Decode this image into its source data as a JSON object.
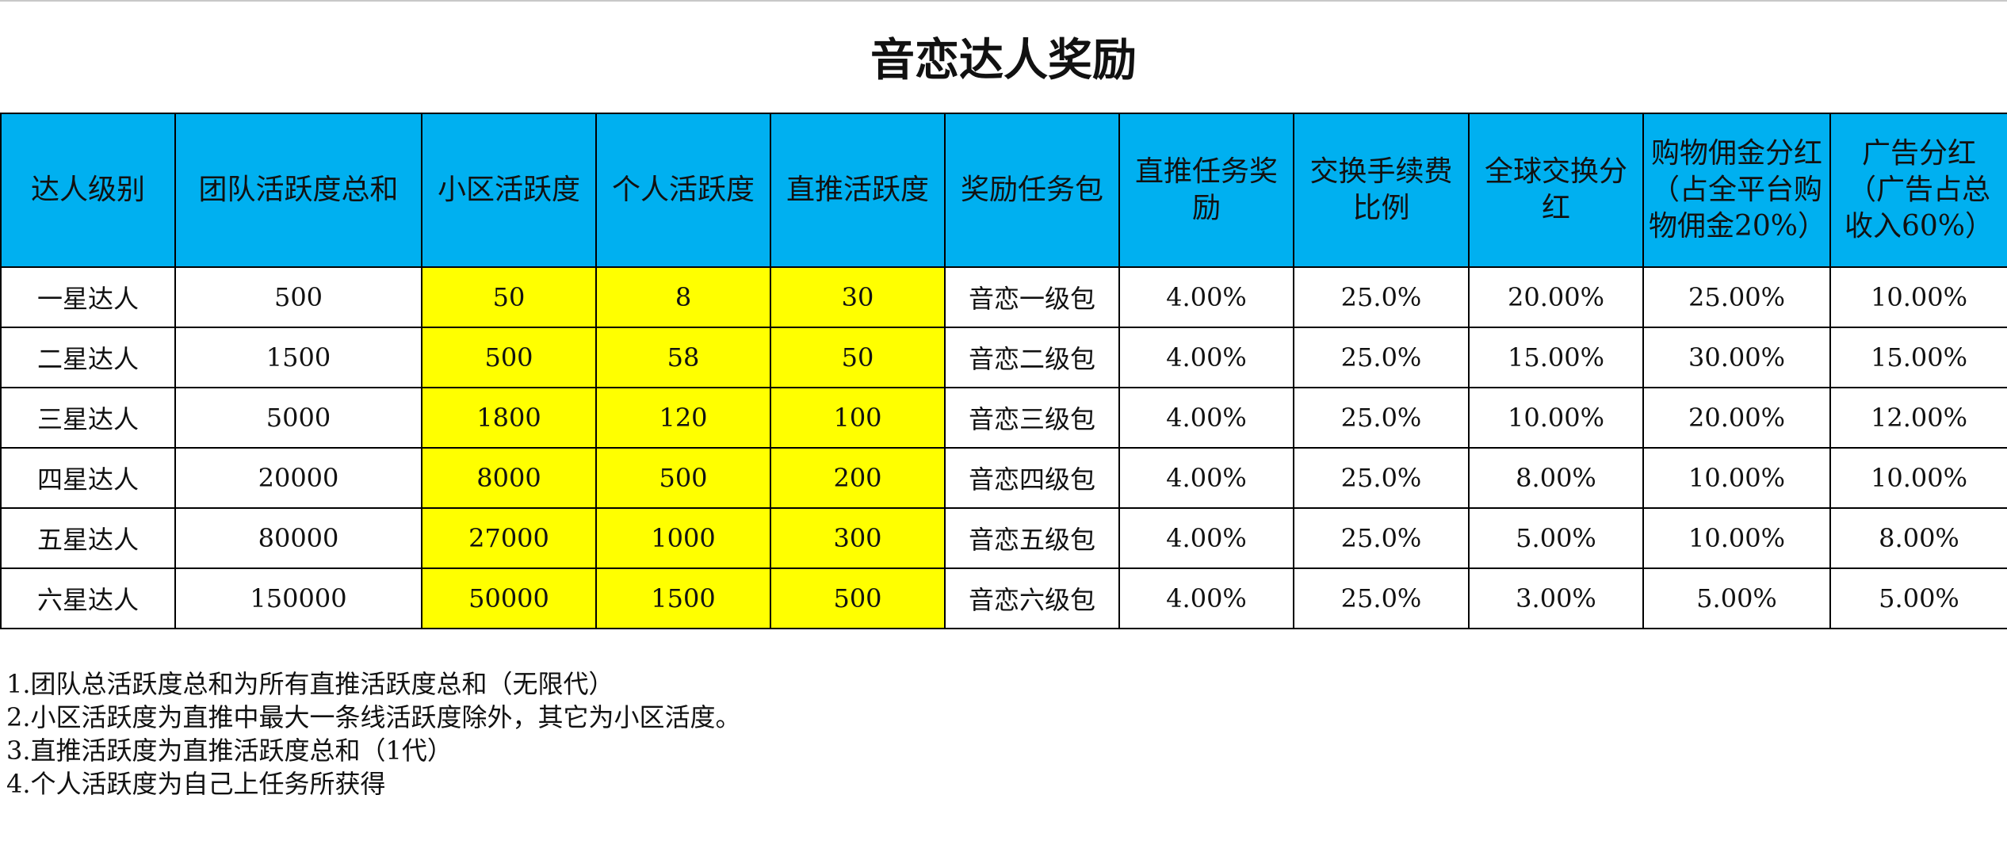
{
  "title": "音恋达人奖励",
  "headers": [
    "达人级别",
    "团队活跃度总和",
    "小区活跃度",
    "个人活跃度",
    "直推活跃度",
    "奖励任务包",
    "直推任务奖励",
    "交换手续费比例",
    "全球交换分红",
    "购物佣金分红（占全平台购物佣金20%）",
    "广告分红（广告占总收入60%）"
  ],
  "rows": [
    [
      "一星达人",
      "500",
      "50",
      "8",
      "30",
      "音恋一级包",
      "4.00%",
      "25.0%",
      "20.00%",
      "25.00%",
      "10.00%"
    ],
    [
      "二星达人",
      "1500",
      "500",
      "58",
      "50",
      "音恋二级包",
      "4.00%",
      "25.0%",
      "15.00%",
      "30.00%",
      "15.00%"
    ],
    [
      "三星达人",
      "5000",
      "1800",
      "120",
      "100",
      "音恋三级包",
      "4.00%",
      "25.0%",
      "10.00%",
      "20.00%",
      "12.00%"
    ],
    [
      "四星达人",
      "20000",
      "8000",
      "500",
      "200",
      "音恋四级包",
      "4.00%",
      "25.0%",
      "8.00%",
      "10.00%",
      "10.00%"
    ],
    [
      "五星达人",
      "80000",
      "27000",
      "1000",
      "300",
      "音恋五级包",
      "4.00%",
      "25.0%",
      "5.00%",
      "10.00%",
      "8.00%"
    ],
    [
      "六星达人",
      "150000",
      "50000",
      "1500",
      "500",
      "音恋六级包",
      "4.00%",
      "25.0%",
      "3.00%",
      "5.00%",
      "5.00%"
    ]
  ],
  "highlighted_columns": [
    2,
    3,
    4
  ],
  "colors": {
    "header_bg": "#00b0f0",
    "highlight_bg": "#ffff00",
    "border": "#000000"
  },
  "notes": [
    "1.团队总活跃度总和为所有直推活跃度总和（无限代）",
    "2.小区活跃度为直推中最大一条线活跃度除外，其它为小区活度。",
    "3.直推活跃度为直推活跃度总和（1代）",
    "4.个人活跃度为自己上任务所获得"
  ]
}
